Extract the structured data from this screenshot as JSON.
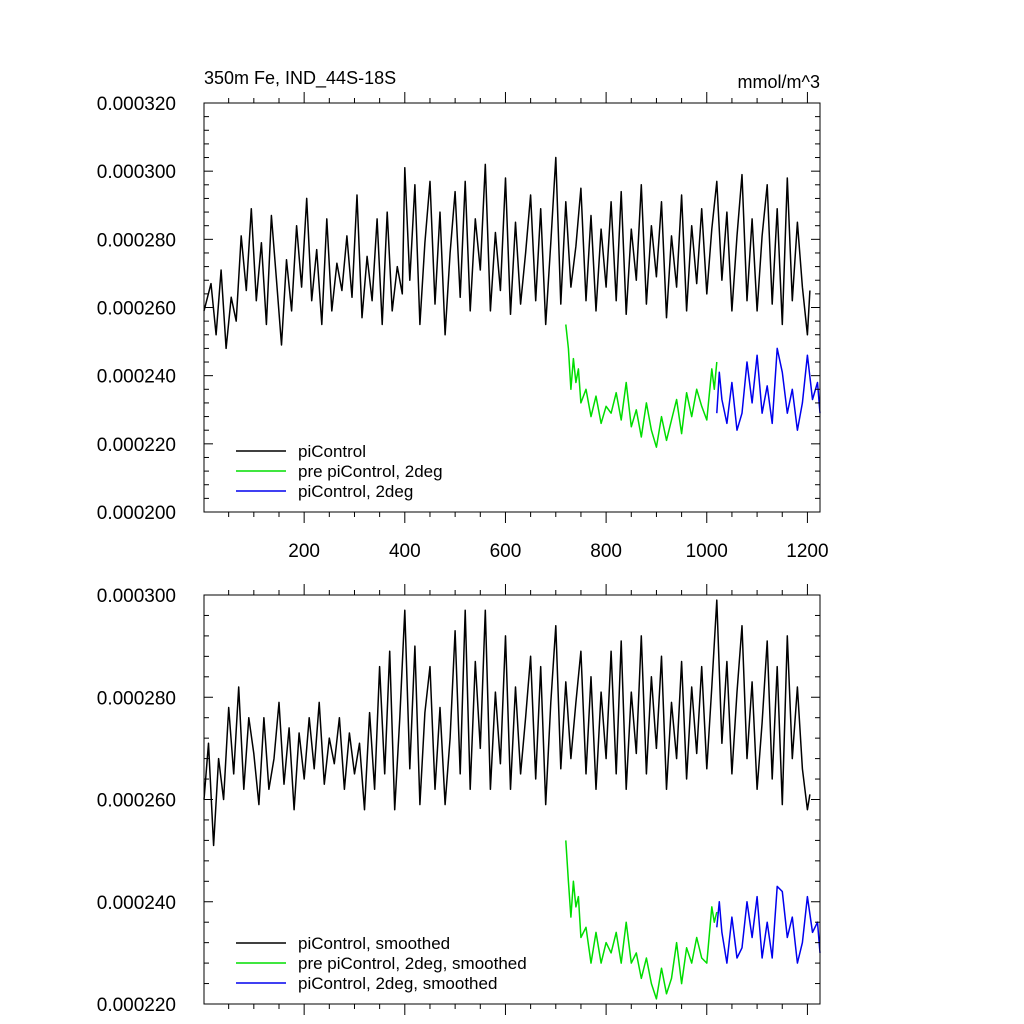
{
  "chart_data": [
    {
      "type": "line",
      "title": "350m Fe, IND_44S-18S",
      "units": "mmol/m^3",
      "xlim": [
        1,
        1225
      ],
      "ylim": [
        0.0002,
        0.00032
      ],
      "x_ticks": [
        200,
        400,
        600,
        800,
        1000,
        1200
      ],
      "x_tick_labels": [
        "200",
        "400",
        "600",
        "800",
        "1000",
        "1200"
      ],
      "y_ticks": [
        0.0002,
        0.00022,
        0.00024,
        0.00026,
        0.00028,
        0.0003,
        0.00032
      ],
      "y_tick_labels": [
        "0.000200",
        "0.000220",
        "0.000240",
        "0.000260",
        "0.000280",
        "0.000300",
        "0.000320"
      ],
      "legend_position": "bottom-left",
      "series": [
        {
          "name": "piControl",
          "color": "#000000",
          "x": [
            1,
            15,
            25,
            35,
            45,
            55,
            65,
            75,
            85,
            95,
            105,
            115,
            125,
            135,
            145,
            155,
            165,
            175,
            185,
            195,
            205,
            215,
            225,
            235,
            245,
            255,
            265,
            275,
            285,
            295,
            305,
            315,
            325,
            335,
            345,
            355,
            365,
            375,
            385,
            395,
            400,
            410,
            420,
            430,
            440,
            450,
            460,
            470,
            480,
            490,
            500,
            510,
            520,
            530,
            540,
            550,
            560,
            570,
            580,
            590,
            600,
            610,
            620,
            630,
            640,
            650,
            660,
            670,
            680,
            690,
            700,
            710,
            720,
            730,
            740,
            750,
            760,
            770,
            780,
            790,
            800,
            810,
            820,
            830,
            840,
            850,
            860,
            870,
            880,
            890,
            900,
            910,
            920,
            930,
            940,
            950,
            960,
            970,
            980,
            990,
            1000,
            1010,
            1020,
            1030,
            1040,
            1050,
            1060,
            1070,
            1080,
            1090,
            1100,
            1110,
            1120,
            1130,
            1140,
            1150,
            1160,
            1170,
            1180,
            1190,
            1200,
            1205
          ],
          "y": [
            0.000259,
            0.000267,
            0.000252,
            0.000271,
            0.000248,
            0.000263,
            0.000256,
            0.000281,
            0.000265,
            0.000289,
            0.000262,
            0.000279,
            0.000255,
            0.000287,
            0.000268,
            0.000249,
            0.000274,
            0.000259,
            0.000284,
            0.000266,
            0.000292,
            0.000262,
            0.000277,
            0.000255,
            0.000286,
            0.000259,
            0.000273,
            0.000265,
            0.000281,
            0.000263,
            0.000293,
            0.000257,
            0.000275,
            0.000262,
            0.000286,
            0.000255,
            0.000288,
            0.000259,
            0.000272,
            0.000264,
            0.000301,
            0.000268,
            0.000296,
            0.000255,
            0.000279,
            0.000297,
            0.000261,
            0.000288,
            0.000252,
            0.000276,
            0.000294,
            0.000263,
            0.000297,
            0.000259,
            0.000286,
            0.000271,
            0.000302,
            0.000259,
            0.000282,
            0.000265,
            0.000298,
            0.000258,
            0.000285,
            0.000261,
            0.000276,
            0.000293,
            0.000262,
            0.000289,
            0.000255,
            0.000279,
            0.000304,
            0.000261,
            0.000291,
            0.000266,
            0.000278,
            0.000295,
            0.000262,
            0.000287,
            0.000259,
            0.000283,
            0.000266,
            0.000291,
            0.000262,
            0.000294,
            0.000258,
            0.000283,
            0.000268,
            0.000296,
            0.000261,
            0.000284,
            0.000269,
            0.000291,
            0.000257,
            0.000281,
            0.000266,
            0.000293,
            0.000259,
            0.000284,
            0.000267,
            0.000289,
            0.000264,
            0.000283,
            0.000297,
            0.000268,
            0.000288,
            0.000259,
            0.000281,
            0.000299,
            0.000262,
            0.000286,
            0.000259,
            0.000281,
            0.000296,
            0.000261,
            0.000289,
            0.000255,
            0.000298,
            0.000262,
            0.000285,
            0.000266,
            0.000252,
            0.000265
          ]
        },
        {
          "name": "pre piControl, 2deg",
          "color": "#00dd00",
          "x": [
            720,
            725,
            730,
            735,
            740,
            745,
            750,
            760,
            770,
            780,
            790,
            800,
            810,
            820,
            830,
            840,
            850,
            860,
            870,
            880,
            890,
            900,
            910,
            920,
            930,
            940,
            950,
            960,
            970,
            980,
            990,
            1000,
            1010,
            1015,
            1020
          ],
          "y": [
            0.000255,
            0.000248,
            0.000236,
            0.000245,
            0.000238,
            0.000242,
            0.000232,
            0.000236,
            0.000228,
            0.000234,
            0.000226,
            0.000231,
            0.000229,
            0.000235,
            0.000227,
            0.000238,
            0.000225,
            0.00023,
            0.000222,
            0.000232,
            0.000224,
            0.000219,
            0.000228,
            0.000221,
            0.000227,
            0.000233,
            0.000223,
            0.000235,
            0.000228,
            0.000236,
            0.000231,
            0.000227,
            0.000242,
            0.000236,
            0.000244
          ]
        },
        {
          "name": "piControl, 2deg",
          "color": "#0000ee",
          "x": [
            1020,
            1025,
            1030,
            1040,
            1050,
            1060,
            1070,
            1080,
            1090,
            1100,
            1110,
            1120,
            1130,
            1140,
            1150,
            1160,
            1170,
            1180,
            1190,
            1200,
            1210,
            1220,
            1225
          ],
          "y": [
            0.000229,
            0.000241,
            0.000233,
            0.000226,
            0.000238,
            0.000224,
            0.000229,
            0.000244,
            0.000232,
            0.000246,
            0.000229,
            0.000237,
            0.000226,
            0.000248,
            0.000241,
            0.000229,
            0.000236,
            0.000224,
            0.000232,
            0.000246,
            0.000233,
            0.000238,
            0.000229
          ]
        }
      ]
    },
    {
      "type": "line",
      "title": "",
      "xlim": [
        1,
        1225
      ],
      "ylim": [
        0.00022,
        0.0003
      ],
      "x_ticks": [
        200,
        400,
        600,
        800,
        1000,
        1200
      ],
      "y_ticks": [
        0.00022,
        0.00024,
        0.00026,
        0.00028,
        0.0003
      ],
      "y_tick_labels": [
        "0.000220",
        "0.000240",
        "0.000260",
        "0.000280",
        "0.000300"
      ],
      "legend_position": "bottom-left",
      "series": [
        {
          "name": "piControl, smoothed",
          "color": "#000000",
          "x": [
            1,
            10,
            20,
            30,
            40,
            50,
            60,
            70,
            80,
            90,
            100,
            110,
            120,
            130,
            140,
            150,
            160,
            170,
            180,
            190,
            200,
            210,
            220,
            230,
            240,
            250,
            260,
            270,
            280,
            290,
            300,
            310,
            320,
            330,
            340,
            350,
            360,
            370,
            380,
            390,
            400,
            410,
            420,
            430,
            440,
            450,
            460,
            470,
            480,
            490,
            500,
            510,
            520,
            530,
            540,
            550,
            560,
            570,
            580,
            590,
            600,
            610,
            620,
            630,
            640,
            650,
            660,
            670,
            680,
            690,
            700,
            710,
            720,
            730,
            740,
            750,
            760,
            770,
            780,
            790,
            800,
            810,
            820,
            830,
            840,
            850,
            860,
            870,
            880,
            890,
            900,
            910,
            920,
            930,
            940,
            950,
            960,
            970,
            980,
            990,
            1000,
            1010,
            1020,
            1030,
            1040,
            1050,
            1060,
            1070,
            1080,
            1090,
            1100,
            1110,
            1120,
            1130,
            1140,
            1150,
            1160,
            1170,
            1180,
            1190,
            1200,
            1205
          ],
          "y": [
            0.00026,
            0.000271,
            0.000251,
            0.000268,
            0.00026,
            0.000278,
            0.000265,
            0.000282,
            0.000262,
            0.000276,
            0.000269,
            0.000259,
            0.000276,
            0.000262,
            0.000268,
            0.000279,
            0.000263,
            0.000274,
            0.000258,
            0.000273,
            0.000264,
            0.000276,
            0.000266,
            0.000279,
            0.000263,
            0.000272,
            0.000267,
            0.000276,
            0.000262,
            0.000273,
            0.000265,
            0.000271,
            0.000258,
            0.000277,
            0.000262,
            0.000286,
            0.000265,
            0.000289,
            0.000258,
            0.000276,
            0.000297,
            0.000266,
            0.00029,
            0.000259,
            0.000277,
            0.000286,
            0.000262,
            0.000278,
            0.000259,
            0.000272,
            0.000293,
            0.000265,
            0.000297,
            0.000262,
            0.000287,
            0.00027,
            0.000297,
            0.000262,
            0.000281,
            0.000267,
            0.000292,
            0.000262,
            0.000282,
            0.000265,
            0.000276,
            0.000288,
            0.000264,
            0.000286,
            0.000259,
            0.000279,
            0.000294,
            0.000266,
            0.000283,
            0.000268,
            0.000279,
            0.000289,
            0.000265,
            0.000284,
            0.000262,
            0.000281,
            0.000268,
            0.000289,
            0.000265,
            0.000291,
            0.000262,
            0.000281,
            0.000269,
            0.000292,
            0.000265,
            0.000284,
            0.00027,
            0.000288,
            0.000262,
            0.000279,
            0.000268,
            0.000287,
            0.000264,
            0.000282,
            0.000269,
            0.000286,
            0.000266,
            0.000282,
            0.000299,
            0.000271,
            0.000287,
            0.000265,
            0.000281,
            0.000294,
            0.000268,
            0.000283,
            0.000262,
            0.000275,
            0.000291,
            0.000264,
            0.000286,
            0.000259,
            0.000292,
            0.000268,
            0.000282,
            0.000266,
            0.000258,
            0.000261
          ]
        },
        {
          "name": "pre piControl, 2deg, smoothed",
          "color": "#00dd00",
          "x": [
            720,
            725,
            730,
            735,
            740,
            745,
            750,
            760,
            770,
            780,
            790,
            800,
            810,
            820,
            830,
            840,
            850,
            860,
            870,
            880,
            890,
            900,
            910,
            920,
            930,
            940,
            950,
            960,
            970,
            980,
            990,
            1000,
            1010,
            1015,
            1020
          ],
          "y": [
            0.000252,
            0.000244,
            0.000237,
            0.000244,
            0.000239,
            0.000241,
            0.000233,
            0.000235,
            0.000228,
            0.000234,
            0.000228,
            0.000232,
            0.00023,
            0.000234,
            0.000228,
            0.000236,
            0.000228,
            0.00023,
            0.000225,
            0.000229,
            0.000224,
            0.000221,
            0.000227,
            0.000222,
            0.000225,
            0.000232,
            0.000224,
            0.000231,
            0.000228,
            0.000233,
            0.000229,
            0.000228,
            0.000239,
            0.000236,
            0.000238
          ]
        },
        {
          "name": "piControl, 2deg, smoothed",
          "color": "#0000ee",
          "x": [
            1020,
            1025,
            1030,
            1040,
            1050,
            1060,
            1070,
            1080,
            1090,
            1100,
            1110,
            1120,
            1130,
            1140,
            1150,
            1160,
            1170,
            1180,
            1190,
            1200,
            1210,
            1220,
            1225
          ],
          "y": [
            0.000235,
            0.00024,
            0.000234,
            0.000228,
            0.000237,
            0.000229,
            0.000231,
            0.00024,
            0.000233,
            0.000241,
            0.000229,
            0.000236,
            0.000229,
            0.000243,
            0.000242,
            0.000233,
            0.000237,
            0.000228,
            0.000232,
            0.000241,
            0.000234,
            0.000236,
            0.00023
          ]
        }
      ]
    }
  ]
}
